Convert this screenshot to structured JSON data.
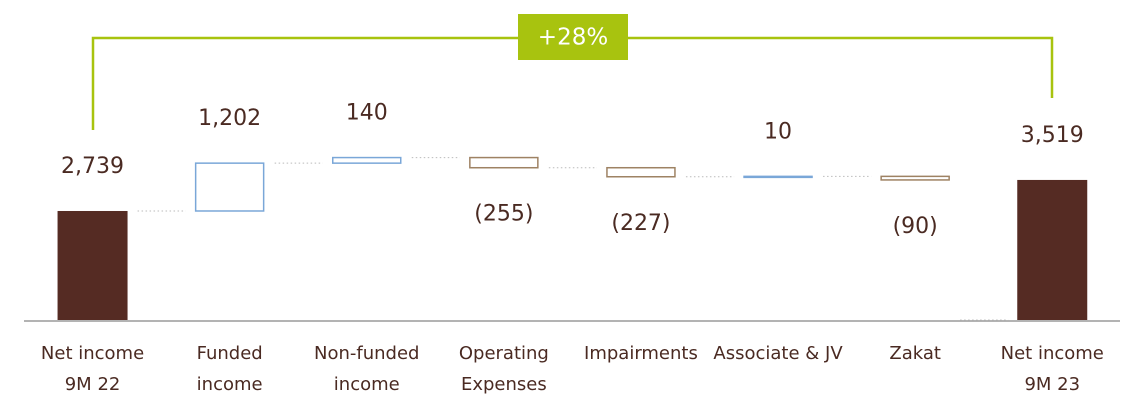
{
  "chart_data": {
    "type": "waterfall",
    "annotation": "+28%",
    "categories": [
      "Net income 9M 22",
      "Funded income",
      "Non-funded income",
      "Operating Expenses",
      "Impairments",
      "Associate & JV",
      "Zakat",
      "Net income 9M 23"
    ],
    "measure": [
      "total",
      "relative",
      "relative",
      "relative",
      "relative",
      "relative",
      "relative",
      "total"
    ],
    "values": [
      2739,
      1202,
      140,
      -255,
      -227,
      10,
      -90,
      3519
    ],
    "value_labels": [
      "2,739",
      "1,202",
      "140",
      "(255)",
      "(227)",
      "10",
      "(90)",
      "3,519"
    ],
    "colors": {
      "total": "#552b23",
      "increase": "#7aa7d8",
      "decrease": "#9e8263",
      "annotation": "#a8c30f"
    }
  }
}
